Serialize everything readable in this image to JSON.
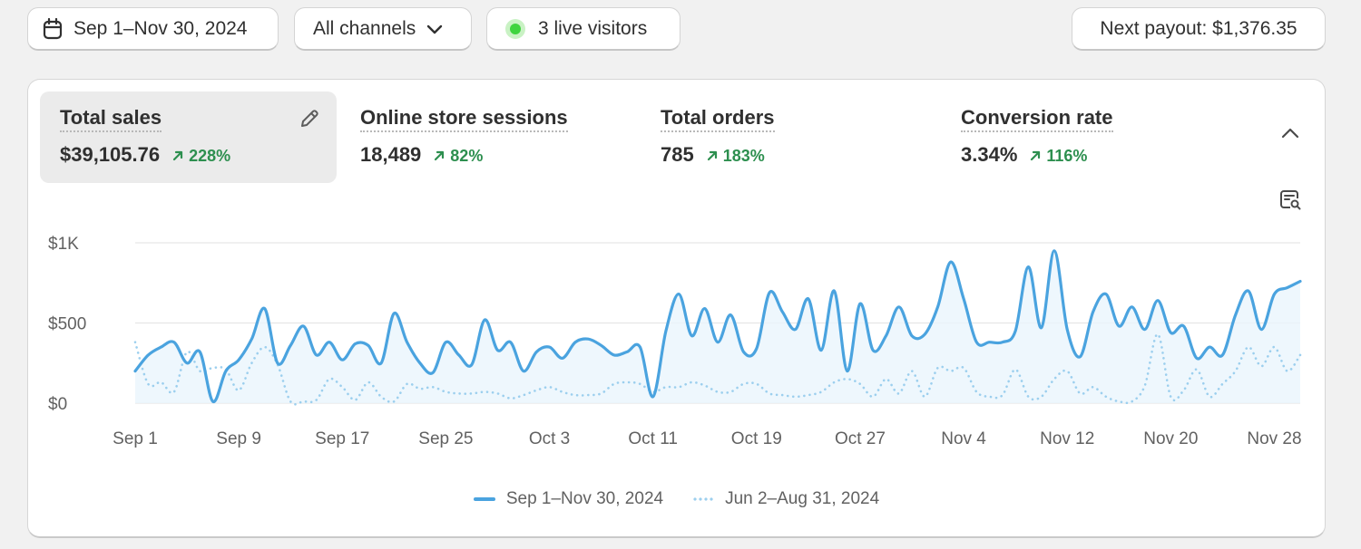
{
  "toolbar": {
    "date_range": "Sep 1–Nov 30, 2024",
    "channels": "All channels",
    "live_visitors": "3 live visitors",
    "next_payout": "Next payout: $1,376.35"
  },
  "metrics": [
    {
      "title": "Total sales",
      "value": "$39,105.76",
      "change": "228%",
      "active": true
    },
    {
      "title": "Online store sessions",
      "value": "18,489",
      "change": "82%",
      "active": false
    },
    {
      "title": "Total orders",
      "value": "785",
      "change": "183%",
      "active": false
    },
    {
      "title": "Conversion rate",
      "value": "3.34%",
      "change": "116%",
      "active": false
    }
  ],
  "icons": {
    "calendar": "calendar-icon",
    "dropdown": "chevron-down-icon",
    "live": "live-dot-icon",
    "edit": "pencil-icon",
    "collapse": "chevron-up-icon",
    "explore": "report-search-icon",
    "trend": "arrow-up-right-icon"
  },
  "colors": {
    "current_series": "#4aa3df",
    "previous_series": "#9ccfee",
    "positive_change": "#2d8f4f",
    "live_dot": "#3fd43f"
  },
  "chart_data": {
    "type": "line",
    "x": [
      "Sep 1",
      "Sep 2",
      "Sep 3",
      "Sep 4",
      "Sep 5",
      "Sep 6",
      "Sep 7",
      "Sep 8",
      "Sep 9",
      "Sep 10",
      "Sep 11",
      "Sep 12",
      "Sep 13",
      "Sep 14",
      "Sep 15",
      "Sep 16",
      "Sep 17",
      "Sep 18",
      "Sep 19",
      "Sep 20",
      "Sep 21",
      "Sep 22",
      "Sep 23",
      "Sep 24",
      "Sep 25",
      "Sep 26",
      "Sep 27",
      "Sep 28",
      "Sep 29",
      "Sep 30",
      "Oct 1",
      "Oct 2",
      "Oct 3",
      "Oct 4",
      "Oct 5",
      "Oct 6",
      "Oct 7",
      "Oct 8",
      "Oct 9",
      "Oct 10",
      "Oct 11",
      "Oct 12",
      "Oct 13",
      "Oct 14",
      "Oct 15",
      "Oct 16",
      "Oct 17",
      "Oct 18",
      "Oct 19",
      "Oct 20",
      "Oct 21",
      "Oct 22",
      "Oct 23",
      "Oct 24",
      "Oct 25",
      "Oct 26",
      "Oct 27",
      "Oct 28",
      "Oct 29",
      "Oct 30",
      "Oct 31",
      "Nov 1",
      "Nov 2",
      "Nov 3",
      "Nov 4",
      "Nov 5",
      "Nov 6",
      "Nov 7",
      "Nov 8",
      "Nov 9",
      "Nov 10",
      "Nov 11",
      "Nov 12",
      "Nov 13",
      "Nov 14",
      "Nov 15",
      "Nov 16",
      "Nov 17",
      "Nov 18",
      "Nov 19",
      "Nov 20",
      "Nov 21",
      "Nov 22",
      "Nov 23",
      "Nov 24",
      "Nov 25",
      "Nov 26",
      "Nov 27",
      "Nov 28",
      "Nov 29",
      "Nov 30"
    ],
    "x_ticks": [
      "Sep 1",
      "Sep 9",
      "Sep 17",
      "Sep 25",
      "Oct 3",
      "Oct 11",
      "Oct 19",
      "Oct 27",
      "Nov 4",
      "Nov 12",
      "Nov 20",
      "Nov 28"
    ],
    "y_ticks": [
      "$0",
      "$500",
      "$1K"
    ],
    "ylim": [
      0,
      1000
    ],
    "series": [
      {
        "name": "Sep 1–Nov 30, 2024",
        "style": "solid",
        "values": [
          200,
          300,
          350,
          380,
          250,
          320,
          10,
          200,
          270,
          400,
          590,
          250,
          360,
          480,
          300,
          380,
          270,
          370,
          360,
          250,
          560,
          380,
          250,
          190,
          380,
          300,
          240,
          520,
          330,
          380,
          200,
          320,
          350,
          280,
          380,
          400,
          360,
          300,
          320,
          350,
          40,
          450,
          680,
          420,
          590,
          380,
          550,
          320,
          340,
          690,
          570,
          460,
          650,
          330,
          700,
          200,
          620,
          330,
          420,
          600,
          420,
          430,
          600,
          880,
          650,
          380,
          380,
          380,
          450,
          850,
          470,
          950,
          460,
          290,
          570,
          680,
          480,
          600,
          460,
          640,
          440,
          480,
          280,
          350,
          300,
          550,
          700,
          460,
          680,
          720,
          760
        ]
      },
      {
        "name": "Jun 2–Aug 31, 2024",
        "style": "dotted",
        "values": [
          380,
          120,
          130,
          70,
          320,
          200,
          220,
          210,
          80,
          250,
          350,
          240,
          10,
          10,
          20,
          150,
          100,
          20,
          130,
          40,
          10,
          120,
          90,
          100,
          70,
          60,
          60,
          70,
          60,
          30,
          50,
          80,
          100,
          70,
          50,
          50,
          60,
          120,
          130,
          120,
          70,
          100,
          100,
          130,
          110,
          70,
          70,
          120,
          120,
          60,
          50,
          40,
          50,
          70,
          130,
          150,
          120,
          40,
          150,
          60,
          200,
          40,
          220,
          200,
          220,
          70,
          40,
          50,
          210,
          40,
          40,
          150,
          200,
          60,
          100,
          40,
          10,
          10,
          110,
          430,
          40,
          80,
          210,
          40,
          120,
          200,
          350,
          230,
          350,
          200,
          300
        ]
      }
    ]
  },
  "legend": {
    "current": "Sep 1–Nov 30, 2024",
    "previous": "Jun 2–Aug 31, 2024"
  }
}
